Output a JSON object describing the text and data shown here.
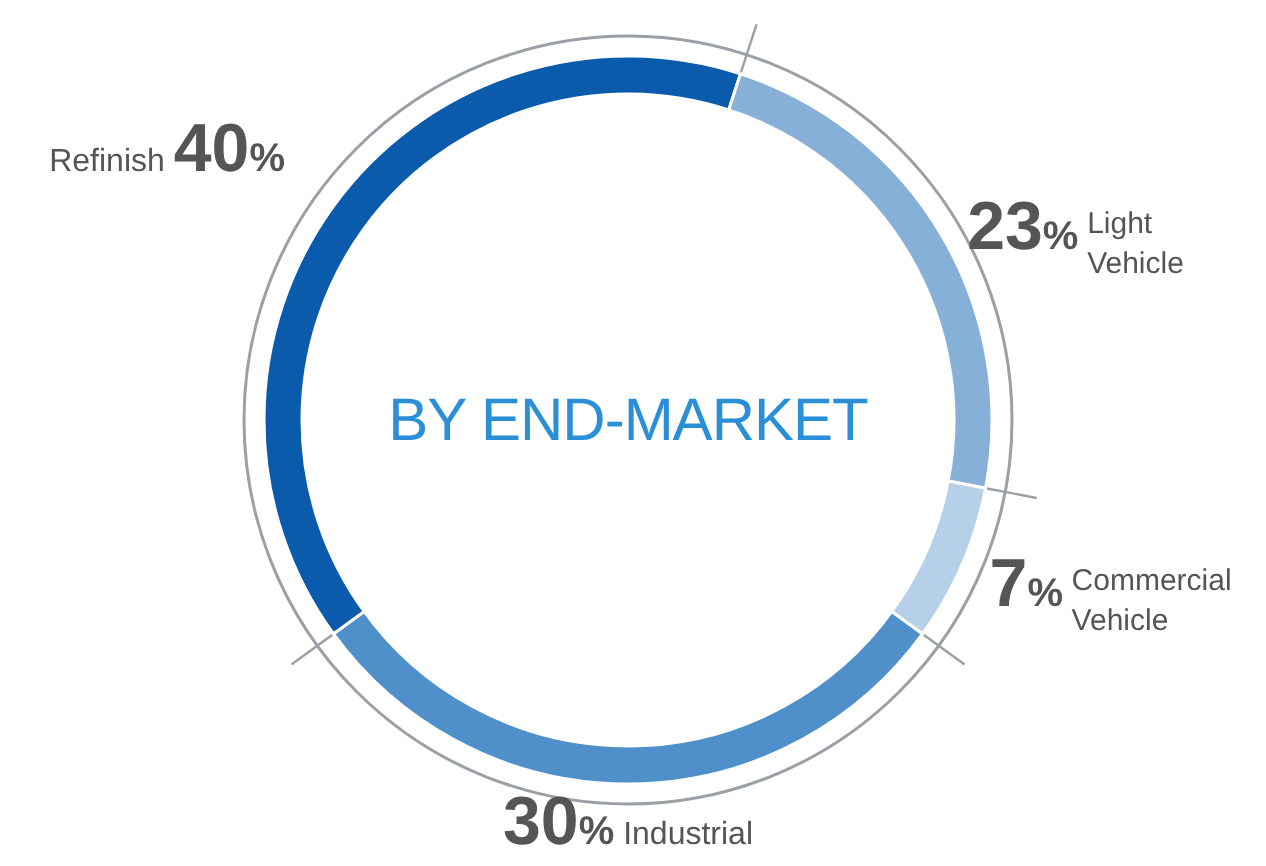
{
  "chart_data": {
    "type": "donut",
    "title": "BY END-MARKET",
    "categories": [
      "Refinish",
      "Light Vehicle",
      "Commercial Vehicle",
      "Industrial"
    ],
    "values": [
      40,
      23,
      7,
      30
    ],
    "colors": [
      "#0a5bab",
      "#86b0d8",
      "#b5d0e8",
      "#4f8fca"
    ],
    "value_labels": [
      "40%",
      "23%",
      "7%",
      "30%"
    ]
  }
}
